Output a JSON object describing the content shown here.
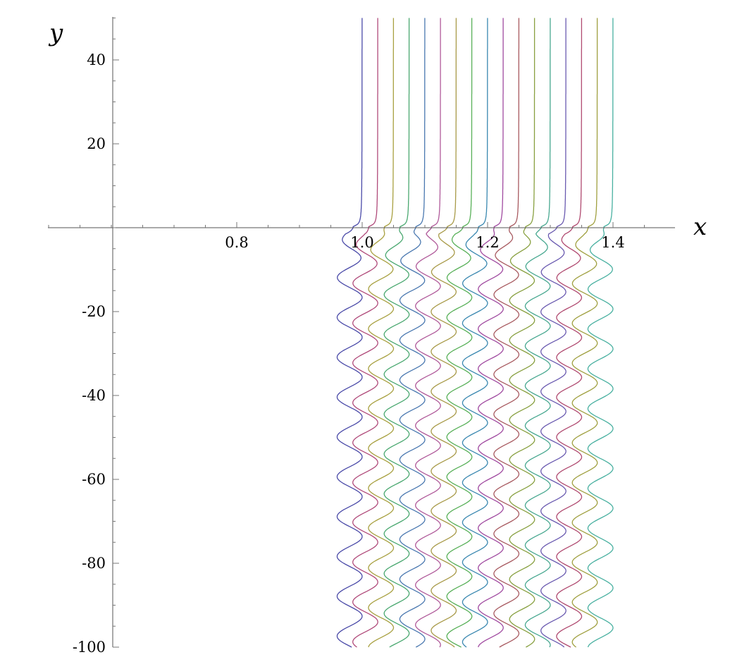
{
  "chart_data": {
    "type": "line",
    "title": "",
    "xlabel": "x",
    "ylabel": "y",
    "xlim": [
      0.5,
      1.5
    ],
    "ylim": [
      -100,
      50
    ],
    "x_ticks": [
      {
        "value": 0.8,
        "label": "0.8"
      },
      {
        "value": 1.0,
        "label": "1.0"
      },
      {
        "value": 1.2,
        "label": "1.2"
      },
      {
        "value": 1.4,
        "label": "1.4"
      }
    ],
    "y_ticks": [
      {
        "value": 40,
        "label": "40"
      },
      {
        "value": 20,
        "label": "20"
      },
      {
        "value": -20,
        "label": "-20"
      },
      {
        "value": -40,
        "label": "-40"
      },
      {
        "value": -60,
        "label": "-60"
      },
      {
        "value": -80,
        "label": "-80"
      },
      {
        "value": -100,
        "label": "-100"
      }
    ],
    "grid": false,
    "legend": "none",
    "curve_family": {
      "count": 17,
      "x_start": 1.0,
      "x_step": 0.025,
      "asymptote_y": 0,
      "oscillation_amplitude_x": 0.02,
      "oscillation_period_y": 9.5,
      "y_range": [
        -100,
        50
      ]
    },
    "colors": [
      "#4a4aa8",
      "#b04a7a",
      "#a8a040",
      "#4aa870",
      "#4a78b0",
      "#b05a9a",
      "#a89a48",
      "#58b058",
      "#3a88b0",
      "#a04aa0",
      "#a85a60",
      "#88a040",
      "#48a890",
      "#6a5ab0",
      "#b04a70",
      "#a0a040",
      "#48b0a0"
    ]
  }
}
